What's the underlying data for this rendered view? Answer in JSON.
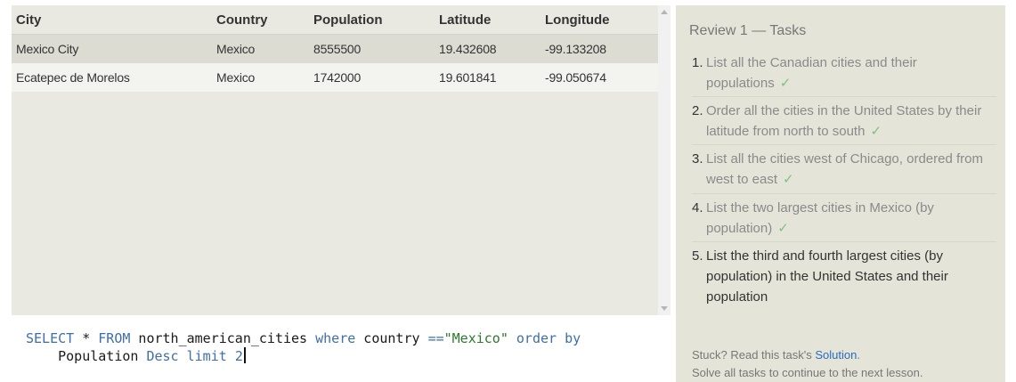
{
  "results": {
    "columns": [
      "City",
      "Country",
      "Population",
      "Latitude",
      "Longitude"
    ],
    "rows": [
      [
        "Mexico City",
        "Mexico",
        "8555500",
        "19.432608",
        "-99.133208"
      ],
      [
        "Ecatepec de Morelos",
        "Mexico",
        "1742000",
        "19.601841",
        "-99.050674"
      ]
    ]
  },
  "editor": {
    "line1": [
      {
        "t": "SELECT",
        "c": "kw"
      },
      {
        "t": " * ",
        "c": ""
      },
      {
        "t": "FROM",
        "c": "kw"
      },
      {
        "t": " north_american_cities ",
        "c": ""
      },
      {
        "t": "where",
        "c": "kw"
      },
      {
        "t": " country ",
        "c": ""
      },
      {
        "t": "==",
        "c": "kw"
      },
      {
        "t": "\"Mexico\"",
        "c": "str"
      },
      {
        "t": " ",
        "c": ""
      },
      {
        "t": "order",
        "c": "kw"
      },
      {
        "t": " ",
        "c": ""
      },
      {
        "t": "by",
        "c": "kw"
      }
    ],
    "line2": [
      {
        "t": "    Population ",
        "c": ""
      },
      {
        "t": "Desc",
        "c": "kw"
      },
      {
        "t": " ",
        "c": ""
      },
      {
        "t": "limit",
        "c": "kw"
      },
      {
        "t": " ",
        "c": ""
      },
      {
        "t": "2",
        "c": "kw"
      }
    ]
  },
  "tasks": {
    "title": "Review 1 — Tasks",
    "check_glyph": "✓",
    "items": [
      {
        "num": "1.",
        "text": "List all the Canadian cities and their populations",
        "done": true
      },
      {
        "num": "2.",
        "text": "Order all the cities in the United States by their latitude from north to south",
        "done": true
      },
      {
        "num": "3.",
        "text": "List all the cities west of Chicago, ordered from west to east",
        "done": true
      },
      {
        "num": "4.",
        "text": "List the two largest cities in Mexico (by population)",
        "done": true
      },
      {
        "num": "5.",
        "text": "List the third and fourth largest cities (by population) in the United States and their population",
        "done": false
      }
    ],
    "footer": {
      "stuck_prefix": "Stuck? Read this task's ",
      "solution_link": "Solution",
      "stuck_suffix": ".",
      "continue_text": "Solve all tasks to continue to the next lesson."
    }
  },
  "colors": {
    "keyword": "#3e6fa8",
    "string": "#2b7a2b",
    "check": "#7ec27e",
    "link": "#2a6cbf"
  }
}
